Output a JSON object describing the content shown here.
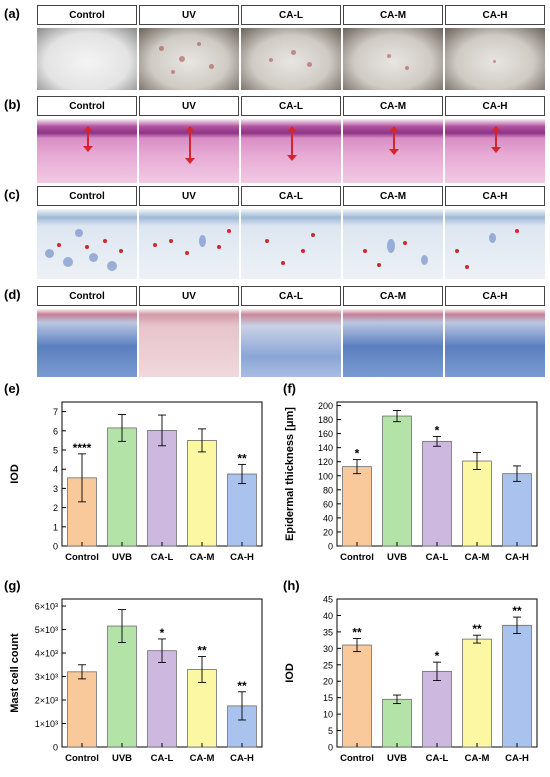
{
  "panel_labels": [
    "(a)",
    "(b)",
    "(c)",
    "(d)",
    "(e)",
    "(f)",
    "(g)",
    "(h)"
  ],
  "image_rows": {
    "headers": [
      "Control",
      "UV",
      "CA-L",
      "CA-M",
      "CA-H"
    ]
  },
  "colors": {
    "control": "#f9c99c",
    "uvb": "#b4e3a8",
    "ca_l": "#cdb9e0",
    "ca_m": "#fbf7a3",
    "ca_h": "#aac3ee",
    "arrow": "#d6262b"
  },
  "chart_data": [
    {
      "id": "e",
      "type": "bar",
      "categories": [
        "Control",
        "UVB",
        "CA-L",
        "CA-M",
        "CA-H"
      ],
      "values": [
        3.55,
        6.15,
        6.02,
        5.5,
        3.75
      ],
      "errors": [
        1.25,
        0.7,
        0.8,
        0.6,
        0.5
      ],
      "significance": [
        "****",
        "",
        "",
        "",
        "**"
      ],
      "xlabel": "",
      "ylabel": "IOD",
      "ylim": [
        0,
        7.5
      ],
      "yticks": [
        "0",
        "1",
        "2",
        "3",
        "4",
        "5",
        "6",
        "7"
      ],
      "ytick_values": [
        0,
        1,
        2,
        3,
        4,
        5,
        6,
        7
      ]
    },
    {
      "id": "f",
      "type": "bar",
      "categories": [
        "Control",
        "UVB",
        "CA-L",
        "CA-M",
        "CA-H"
      ],
      "values": [
        113,
        185,
        149,
        121,
        103
      ],
      "errors": [
        10,
        8,
        7,
        12,
        11
      ],
      "significance": [
        "*",
        "",
        "*",
        "",
        ""
      ],
      "xlabel": "",
      "ylabel": "Epidermal thickness  [μm]",
      "ylim": [
        0,
        205
      ],
      "yticks": [
        "0",
        "20",
        "40",
        "60",
        "80",
        "100",
        "120",
        "140",
        "160",
        "180",
        "200"
      ],
      "ytick_values": [
        0,
        20,
        40,
        60,
        80,
        100,
        120,
        140,
        160,
        180,
        200
      ]
    },
    {
      "id": "g",
      "type": "bar",
      "categories": [
        "Control",
        "UVB",
        "CA-L",
        "CA-M",
        "CA-H"
      ],
      "values": [
        3.2,
        5.15,
        4.1,
        3.3,
        1.75
      ],
      "errors": [
        0.3,
        0.7,
        0.5,
        0.55,
        0.6
      ],
      "significance": [
        "",
        "",
        "*",
        "**",
        "**"
      ],
      "xlabel": "",
      "ylabel": "Mast cell count",
      "ylim": [
        0,
        6.3
      ],
      "yticks": [
        "0",
        "1×10³",
        "2×10³",
        "3×10³",
        "4×10³",
        "5×10³",
        "6×10³"
      ],
      "ytick_values": [
        0,
        1,
        2,
        3,
        4,
        5,
        6
      ]
    },
    {
      "id": "h",
      "type": "bar",
      "categories": [
        "Control",
        "UVB",
        "CA-L",
        "CA-M",
        "CA-H"
      ],
      "values": [
        31,
        14.5,
        23,
        32.8,
        37
      ],
      "errors": [
        2,
        1.3,
        2.8,
        1.2,
        2.5
      ],
      "significance": [
        "**",
        "",
        "*",
        "**",
        "**"
      ],
      "xlabel": "",
      "ylabel": "IOD",
      "ylim": [
        0,
        45
      ],
      "yticks": [
        "0",
        "5",
        "10",
        "15",
        "20",
        "25",
        "30",
        "35",
        "40",
        "45"
      ],
      "ytick_values": [
        0,
        5,
        10,
        15,
        20,
        25,
        30,
        35,
        40,
        45
      ]
    }
  ]
}
